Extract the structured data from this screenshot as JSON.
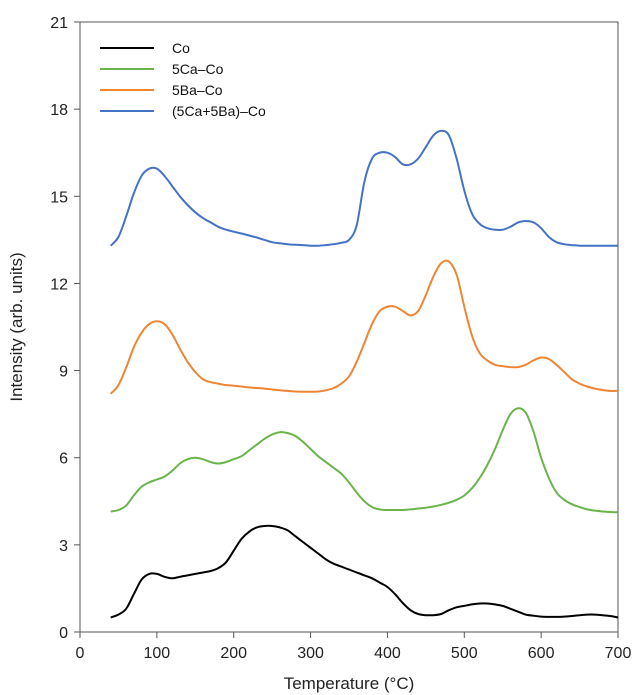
{
  "chart_data": {
    "type": "line",
    "xlabel": "Temperature (°C)",
    "ylabel": "Intensity (arb. units)",
    "xlim": [
      0,
      700
    ],
    "ylim": [
      0,
      21
    ],
    "xticks": [
      0,
      100,
      200,
      300,
      400,
      500,
      600,
      700
    ],
    "yticks": [
      0,
      3,
      6,
      9,
      12,
      15,
      18,
      21
    ],
    "grid": false,
    "legend_position": "top-left",
    "series": [
      {
        "name": "Co",
        "color": "#000000",
        "x": [
          40,
          50,
          60,
          70,
          80,
          90,
          100,
          110,
          120,
          130,
          140,
          150,
          160,
          170,
          180,
          190,
          200,
          210,
          220,
          230,
          240,
          250,
          260,
          270,
          280,
          290,
          300,
          310,
          320,
          330,
          340,
          350,
          360,
          370,
          380,
          390,
          400,
          410,
          420,
          430,
          440,
          450,
          460,
          470,
          480,
          490,
          500,
          510,
          520,
          530,
          540,
          550,
          560,
          570,
          580,
          590,
          600,
          610,
          620,
          630,
          640,
          650,
          660,
          670,
          680,
          690,
          700
        ],
        "y": [
          0.5,
          0.6,
          0.8,
          1.3,
          1.8,
          2.0,
          2.0,
          1.9,
          1.85,
          1.9,
          1.95,
          2.0,
          2.05,
          2.1,
          2.2,
          2.4,
          2.8,
          3.2,
          3.45,
          3.6,
          3.65,
          3.65,
          3.6,
          3.5,
          3.3,
          3.1,
          2.9,
          2.7,
          2.5,
          2.35,
          2.25,
          2.15,
          2.05,
          1.95,
          1.85,
          1.7,
          1.55,
          1.3,
          1.0,
          0.75,
          0.62,
          0.58,
          0.58,
          0.62,
          0.75,
          0.85,
          0.9,
          0.95,
          0.98,
          0.98,
          0.95,
          0.9,
          0.8,
          0.7,
          0.6,
          0.56,
          0.53,
          0.52,
          0.52,
          0.53,
          0.55,
          0.58,
          0.6,
          0.6,
          0.58,
          0.55,
          0.5
        ]
      },
      {
        "name": "5Ca–Co",
        "color": "#6ab44c",
        "x": [
          40,
          50,
          60,
          70,
          80,
          90,
          100,
          110,
          120,
          130,
          140,
          150,
          160,
          170,
          180,
          190,
          200,
          210,
          220,
          230,
          240,
          250,
          260,
          270,
          280,
          290,
          300,
          310,
          320,
          330,
          340,
          350,
          360,
          370,
          380,
          390,
          400,
          410,
          420,
          430,
          440,
          450,
          460,
          470,
          480,
          490,
          500,
          510,
          520,
          530,
          540,
          550,
          560,
          570,
          580,
          590,
          600,
          610,
          620,
          630,
          640,
          650,
          660,
          670,
          680,
          690,
          700
        ],
        "y": [
          4.15,
          4.2,
          4.35,
          4.7,
          5.0,
          5.15,
          5.25,
          5.35,
          5.55,
          5.8,
          5.95,
          6.0,
          5.95,
          5.85,
          5.8,
          5.85,
          5.95,
          6.05,
          6.25,
          6.45,
          6.65,
          6.8,
          6.88,
          6.85,
          6.75,
          6.55,
          6.3,
          6.05,
          5.85,
          5.65,
          5.45,
          5.15,
          4.8,
          4.5,
          4.3,
          4.22,
          4.2,
          4.2,
          4.2,
          4.22,
          4.25,
          4.28,
          4.32,
          4.38,
          4.45,
          4.55,
          4.7,
          4.95,
          5.3,
          5.75,
          6.3,
          6.95,
          7.5,
          7.7,
          7.55,
          6.9,
          6.0,
          5.3,
          4.8,
          4.55,
          4.4,
          4.3,
          4.22,
          4.18,
          4.15,
          4.13,
          4.12
        ]
      },
      {
        "name": "5Ba–Co",
        "color": "#ef8533",
        "x": [
          40,
          50,
          60,
          70,
          80,
          90,
          100,
          110,
          120,
          130,
          140,
          150,
          160,
          170,
          180,
          190,
          200,
          210,
          220,
          230,
          240,
          250,
          260,
          270,
          280,
          290,
          300,
          310,
          320,
          330,
          340,
          350,
          360,
          370,
          380,
          390,
          400,
          410,
          420,
          430,
          440,
          450,
          460,
          470,
          480,
          490,
          500,
          510,
          520,
          530,
          540,
          550,
          560,
          570,
          580,
          590,
          600,
          610,
          620,
          630,
          640,
          650,
          660,
          670,
          680,
          690,
          700
        ],
        "y": [
          8.2,
          8.5,
          9.1,
          9.8,
          10.3,
          10.6,
          10.7,
          10.6,
          10.25,
          9.75,
          9.3,
          8.95,
          8.7,
          8.6,
          8.55,
          8.5,
          8.48,
          8.45,
          8.42,
          8.4,
          8.38,
          8.35,
          8.32,
          8.3,
          8.28,
          8.27,
          8.27,
          8.28,
          8.32,
          8.4,
          8.55,
          8.8,
          9.3,
          9.95,
          10.6,
          11.05,
          11.2,
          11.2,
          11.05,
          10.9,
          11.05,
          11.6,
          12.25,
          12.7,
          12.75,
          12.3,
          11.2,
          10.2,
          9.6,
          9.35,
          9.2,
          9.15,
          9.12,
          9.12,
          9.2,
          9.35,
          9.45,
          9.4,
          9.2,
          8.95,
          8.7,
          8.55,
          8.45,
          8.38,
          8.33,
          8.3,
          8.3
        ]
      },
      {
        "name": "(5Ca+5Ba)–Co",
        "color": "#4472c4",
        "x": [
          40,
          50,
          60,
          70,
          80,
          90,
          100,
          110,
          120,
          130,
          140,
          150,
          160,
          170,
          180,
          190,
          200,
          210,
          220,
          230,
          240,
          250,
          260,
          270,
          280,
          290,
          300,
          310,
          320,
          330,
          340,
          350,
          360,
          370,
          380,
          390,
          400,
          410,
          420,
          430,
          440,
          450,
          460,
          470,
          480,
          490,
          500,
          510,
          520,
          530,
          540,
          550,
          560,
          570,
          580,
          590,
          600,
          610,
          620,
          630,
          640,
          650,
          660,
          670,
          680,
          690,
          700
        ],
        "y": [
          13.3,
          13.6,
          14.3,
          15.1,
          15.7,
          15.95,
          15.95,
          15.7,
          15.35,
          15.0,
          14.7,
          14.45,
          14.25,
          14.1,
          13.95,
          13.85,
          13.78,
          13.72,
          13.65,
          13.58,
          13.5,
          13.42,
          13.38,
          13.35,
          13.33,
          13.32,
          13.3,
          13.3,
          13.32,
          13.35,
          13.4,
          13.5,
          14.0,
          15.5,
          16.3,
          16.5,
          16.5,
          16.35,
          16.1,
          16.1,
          16.3,
          16.7,
          17.1,
          17.25,
          17.1,
          16.3,
          15.2,
          14.4,
          14.05,
          13.9,
          13.85,
          13.85,
          13.95,
          14.1,
          14.15,
          14.1,
          13.9,
          13.6,
          13.42,
          13.35,
          13.32,
          13.3,
          13.3,
          13.3,
          13.3,
          13.3,
          13.3
        ]
      }
    ]
  }
}
